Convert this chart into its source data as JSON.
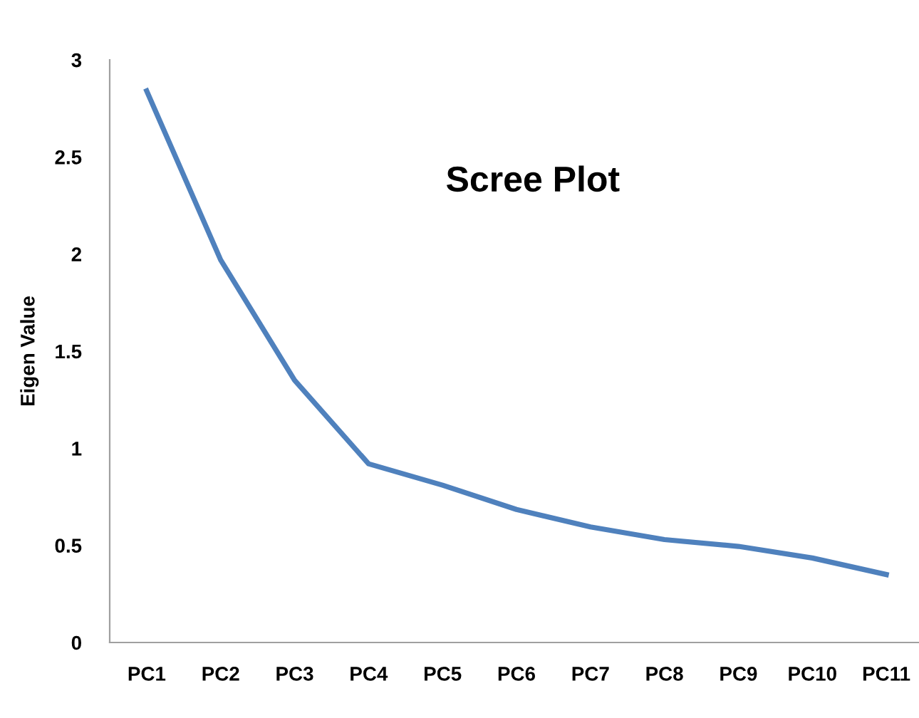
{
  "chart_data": {
    "type": "line",
    "title": "Scree Plot",
    "ylabel": "Eigen Value",
    "categories": [
      "PC1",
      "PC2",
      "PC3",
      "PC4",
      "PC5",
      "PC6",
      "PC7",
      "PC8",
      "PC9",
      "PC10",
      "PC11"
    ],
    "series": [
      {
        "color": "#4f81bd",
        "values": [
          2.84,
          1.97,
          1.35,
          0.92,
          0.81,
          0.685,
          0.595,
          0.53,
          0.495,
          0.435,
          0.35
        ]
      }
    ],
    "ylim": [
      0,
      3
    ],
    "yticks": [
      0,
      0.5,
      1,
      1.5,
      2,
      2.5,
      3
    ],
    "grid": false,
    "marker": "none",
    "line_style": "solid"
  }
}
